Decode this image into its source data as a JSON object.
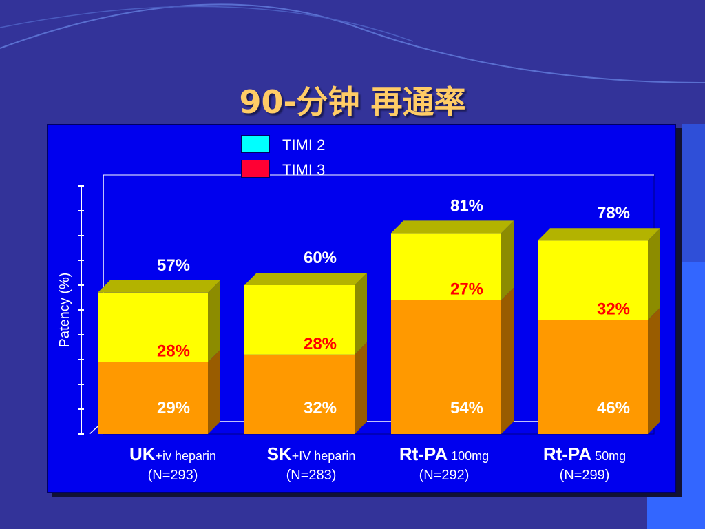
{
  "title": "90-分钟 再通率",
  "colors": {
    "background": "#333399",
    "panel": "#0000ee",
    "timi2": "#ffff00",
    "timi3": "#ff9900",
    "legend_timi2": "#00ffff",
    "legend_timi3": "#ff0033",
    "total_label": "#ffffff",
    "timi2_label": "#ff0000"
  },
  "legend": [
    {
      "label": "TIMI 2"
    },
    {
      "label": "TIMI 3"
    }
  ],
  "categories": [
    {
      "main": "UK",
      "sub": "+iv heparin",
      "n": "(N=293)"
    },
    {
      "main": "SK",
      "sub": "+IV heparin",
      "n": "(N=283)"
    },
    {
      "main": "Rt-PA",
      "sub": " 100mg",
      "n": "(N=292)"
    },
    {
      "main": "Rt-PA",
      "sub": " 50mg",
      "n": "(N=299)"
    }
  ],
  "chart_data": {
    "type": "bar",
    "stacked": true,
    "style": "3d",
    "ylabel": "Patency (%)",
    "ylim": [
      0,
      100
    ],
    "y_tick_count": 11,
    "categories": [
      "UK +iv heparin",
      "SK +IV heparin",
      "Rt-PA 100mg",
      "Rt-PA 50mg"
    ],
    "series": [
      {
        "name": "TIMI 3",
        "values": [
          29,
          32,
          54,
          46
        ],
        "labels": [
          "29%",
          "32%",
          "54%",
          "46%"
        ]
      },
      {
        "name": "TIMI 2",
        "values": [
          28,
          28,
          27,
          32
        ],
        "labels": [
          "28%",
          "28%",
          "27%",
          "32%"
        ]
      }
    ],
    "totals": [
      57,
      60,
      81,
      78
    ],
    "total_labels": [
      "57%",
      "60%",
      "81%",
      "78%"
    ],
    "legend_position": "top"
  }
}
